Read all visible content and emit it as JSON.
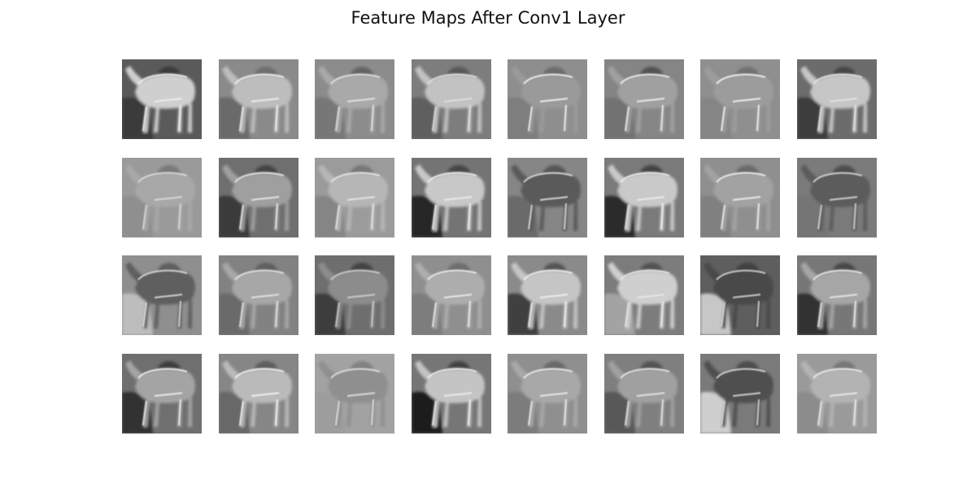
{
  "figure": {
    "title": "Feature Maps After Conv1 Layer"
  },
  "grid": {
    "rows": 4,
    "cols": 8
  },
  "feature_maps": [
    {
      "bg": "#5a5a5a",
      "ground": "#3a3a3a",
      "animal": "#cfcfcf",
      "edge": "#eeeeee",
      "blob": "#1f1f1f"
    },
    {
      "bg": "#8a8a8a",
      "ground": "#6a6a6a",
      "animal": "#bdbdbd",
      "edge": "#f2f2f2",
      "blob": "#555555"
    },
    {
      "bg": "#8c8c8c",
      "ground": "#777777",
      "animal": "#a9a9a9",
      "edge": "#e6e6e6",
      "blob": "#444444"
    },
    {
      "bg": "#7d7d7d",
      "ground": "#5e5e5e",
      "animal": "#c2c2c2",
      "edge": "#e0e0e0",
      "blob": "#3c3c3c"
    },
    {
      "bg": "#8e8e8e",
      "ground": "#7e7e7e",
      "animal": "#9a9a9a",
      "edge": "#f4f4f4",
      "blob": "#4f4f4f"
    },
    {
      "bg": "#858585",
      "ground": "#727272",
      "animal": "#a0a0a0",
      "edge": "#f0f0f0",
      "blob": "#2c2c2c"
    },
    {
      "bg": "#8f8f8f",
      "ground": "#858585",
      "animal": "#9c9c9c",
      "edge": "#f6f6f6",
      "blob": "#5a5a5a"
    },
    {
      "bg": "#6c6c6c",
      "ground": "#3d3d3d",
      "animal": "#c6c6c6",
      "edge": "#e5e5e5",
      "blob": "#272727"
    },
    {
      "bg": "#9a9a9a",
      "ground": "#8f8f8f",
      "animal": "#a8a8a8",
      "edge": "#dcdcdc",
      "blob": "#5e5e5e"
    },
    {
      "bg": "#6f6f6f",
      "ground": "#3a3a3a",
      "animal": "#9f9f9f",
      "edge": "#eaeaea",
      "blob": "#222222"
    },
    {
      "bg": "#9b9b9b",
      "ground": "#858585",
      "animal": "#b6b6b6",
      "edge": "#e8e8e8",
      "blob": "#595959"
    },
    {
      "bg": "#747474",
      "ground": "#282828",
      "animal": "#c8c8c8",
      "edge": "#eeeeee",
      "blob": "#1c1c1c"
    },
    {
      "bg": "#868686",
      "ground": "#6a6a6a",
      "animal": "#5a5a5a",
      "edge": "#dedede",
      "blob": "#2e2e2e"
    },
    {
      "bg": "#7a7a7a",
      "ground": "#2c2c2c",
      "animal": "#c9c9c9",
      "edge": "#eeeeee",
      "blob": "#1a1a1a"
    },
    {
      "bg": "#8f8f8f",
      "ground": "#808080",
      "animal": "#a2a2a2",
      "edge": "#f2f2f2",
      "blob": "#4a4a4a"
    },
    {
      "bg": "#7b7b7b",
      "ground": "#757575",
      "animal": "#5c5c5c",
      "edge": "#d8d8d8",
      "blob": "#2a2a2a"
    },
    {
      "bg": "#8f8f8f",
      "ground": "#bdbdbd",
      "animal": "#5f5f5f",
      "edge": "#dcdcdc",
      "blob": "#3c3c3c"
    },
    {
      "bg": "#828282",
      "ground": "#6b6b6b",
      "animal": "#a7a7a7",
      "edge": "#e6e6e6",
      "blob": "#464646"
    },
    {
      "bg": "#6e6e6e",
      "ground": "#3e3e3e",
      "animal": "#8c8c8c",
      "edge": "#d0d0d0",
      "blob": "#1d1d1d"
    },
    {
      "bg": "#8f8f8f",
      "ground": "#7d7d7d",
      "animal": "#adadad",
      "edge": "#eeeeee",
      "blob": "#525252"
    },
    {
      "bg": "#8a8a8a",
      "ground": "#3f3f3f",
      "animal": "#c5c5c5",
      "edge": "#f1f1f1",
      "blob": "#2a2a2a"
    },
    {
      "bg": "#7c7c7c",
      "ground": "#a3a3a3",
      "animal": "#cfcfcf",
      "edge": "#e8e8e8",
      "blob": "#2d2d2d"
    },
    {
      "bg": "#5e5e5e",
      "ground": "#c7c7c7",
      "animal": "#4a4a4a",
      "edge": "#d6d6d6",
      "blob": "#262626"
    },
    {
      "bg": "#777777",
      "ground": "#303030",
      "animal": "#a6a6a6",
      "edge": "#eaeaea",
      "blob": "#1f1f1f"
    },
    {
      "bg": "#6f6f6f",
      "ground": "#313131",
      "animal": "#a4a4a4",
      "edge": "#f0f0f0",
      "blob": "#1a1a1a"
    },
    {
      "bg": "#868686",
      "ground": "#686868",
      "animal": "#bababa",
      "edge": "#f4f4f4",
      "blob": "#3d3d3d"
    },
    {
      "bg": "#a2a2a2",
      "ground": "#9d9d9d",
      "animal": "#8f8f8f",
      "edge": "#e2e2e2",
      "blob": "#666666"
    },
    {
      "bg": "#767676",
      "ground": "#1f1f1f",
      "animal": "#c4c4c4",
      "edge": "#eeeeee",
      "blob": "#141414"
    },
    {
      "bg": "#8f8f8f",
      "ground": "#7c7c7c",
      "animal": "#a8a8a8",
      "edge": "#eeeeee",
      "blob": "#4b4b4b"
    },
    {
      "bg": "#7f7f7f",
      "ground": "#585858",
      "animal": "#a0a0a0",
      "edge": "#e8e8e8",
      "blob": "#323232"
    },
    {
      "bg": "#7a7a7a",
      "ground": "#cfcfcf",
      "animal": "#4f4f4f",
      "edge": "#d8d8d8",
      "blob": "#262626"
    },
    {
      "bg": "#9a9a9a",
      "ground": "#8c8c8c",
      "animal": "#b3b3b3",
      "edge": "#eeeeee",
      "blob": "#5c5c5c"
    }
  ]
}
